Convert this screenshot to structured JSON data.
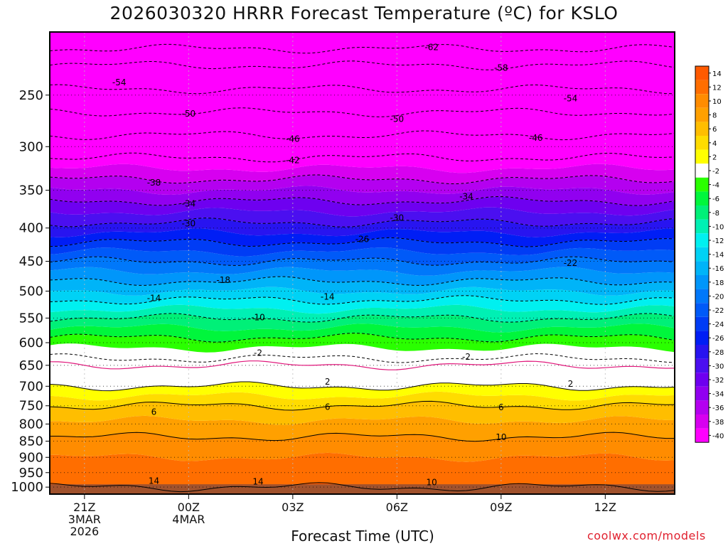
{
  "chart_data": {
    "type": "heatmap",
    "title": "2026030320 HRRR Forecast Temperature (ºC) for KSLO",
    "xlabel": "Forecast Time (UTC)",
    "credit": "coolwx.com/models",
    "x_range_hours": [
      -1,
      17
    ],
    "y_axis": {
      "type": "log",
      "range_hPa": [
        200,
        1025
      ]
    },
    "pressure_ticks": [
      {
        "value": 250,
        "label": "250"
      },
      {
        "value": 300,
        "label": "300"
      },
      {
        "value": 350,
        "label": "350"
      },
      {
        "value": 400,
        "label": "400"
      },
      {
        "value": 450,
        "label": "450"
      },
      {
        "value": 500,
        "label": "500"
      },
      {
        "value": 550,
        "label": "550"
      },
      {
        "value": 600,
        "label": "600"
      },
      {
        "value": 650,
        "label": "650"
      },
      {
        "value": 700,
        "label": "700"
      },
      {
        "value": 750,
        "label": "750"
      },
      {
        "value": 800,
        "label": "800"
      },
      {
        "value": 850,
        "label": "850"
      },
      {
        "value": 900,
        "label": "900"
      },
      {
        "value": 950,
        "label": "950"
      },
      {
        "value": 1000,
        "label": "1000"
      }
    ],
    "time_ticks": [
      {
        "hour": 0,
        "lines": [
          "21Z",
          "3MAR",
          "2026"
        ]
      },
      {
        "hour": 3,
        "lines": [
          "00Z",
          "4MAR"
        ]
      },
      {
        "hour": 6,
        "lines": [
          "03Z"
        ]
      },
      {
        "hour": 9,
        "lines": [
          "06Z"
        ]
      },
      {
        "hour": 12,
        "lines": [
          "09Z"
        ]
      },
      {
        "hour": 15,
        "lines": [
          "12Z"
        ]
      }
    ],
    "temperature_profile": [
      {
        "p": 200,
        "t": -66
      },
      {
        "p": 225,
        "t": -58
      },
      {
        "p": 250,
        "t": -53
      },
      {
        "p": 300,
        "t": -44
      },
      {
        "p": 350,
        "t": -36
      },
      {
        "p": 400,
        "t": -29
      },
      {
        "p": 450,
        "t": -22
      },
      {
        "p": 500,
        "t": -16
      },
      {
        "p": 550,
        "t": -10
      },
      {
        "p": 600,
        "t": -5
      },
      {
        "p": 640,
        "t": -1.5
      },
      {
        "p": 650,
        "t": 0
      },
      {
        "p": 700,
        "t": 2
      },
      {
        "p": 750,
        "t": 6
      },
      {
        "p": 800,
        "t": 8.5
      },
      {
        "p": 850,
        "t": 10.5
      },
      {
        "p": 900,
        "t": 12
      },
      {
        "p": 950,
        "t": 13.5
      },
      {
        "p": 1000,
        "t": 14
      }
    ],
    "ground_level_hPa": 990,
    "contour_labels": [
      {
        "text": "-62",
        "hour": 10.0,
        "p": 211
      },
      {
        "text": "-58",
        "hour": 12.0,
        "p": 227
      },
      {
        "text": "-54",
        "hour": 1.0,
        "p": 239
      },
      {
        "text": "-54",
        "hour": 14.0,
        "p": 253
      },
      {
        "text": "-50",
        "hour": 3.0,
        "p": 267
      },
      {
        "text": "-50",
        "hour": 9.0,
        "p": 272
      },
      {
        "text": "-46",
        "hour": 6.0,
        "p": 292
      },
      {
        "text": "-46",
        "hour": 13.0,
        "p": 291
      },
      {
        "text": "-42",
        "hour": 6.0,
        "p": 315
      },
      {
        "text": "-38",
        "hour": 2.0,
        "p": 341
      },
      {
        "text": "-34",
        "hour": 3.0,
        "p": 367
      },
      {
        "text": "-34",
        "hour": 11.0,
        "p": 358
      },
      {
        "text": "-30",
        "hour": 3.0,
        "p": 394
      },
      {
        "text": "-30",
        "hour": 9.0,
        "p": 386
      },
      {
        "text": "-26",
        "hour": 8.0,
        "p": 416
      },
      {
        "text": "-22",
        "hour": 14.0,
        "p": 453
      },
      {
        "text": "-18",
        "hour": 4.0,
        "p": 481
      },
      {
        "text": "-14",
        "hour": 2.0,
        "p": 513
      },
      {
        "text": "-14",
        "hour": 7.0,
        "p": 510
      },
      {
        "text": "-10",
        "hour": 5.0,
        "p": 549
      },
      {
        "text": "-2",
        "hour": 5.0,
        "p": 622
      },
      {
        "text": "-2",
        "hour": 11.0,
        "p": 631
      },
      {
        "text": "2",
        "hour": 7.0,
        "p": 689
      },
      {
        "text": "2",
        "hour": 14.0,
        "p": 694
      },
      {
        "text": "6",
        "hour": 2.0,
        "p": 767
      },
      {
        "text": "6",
        "hour": 7.0,
        "p": 753
      },
      {
        "text": "6",
        "hour": 12.0,
        "p": 754
      },
      {
        "text": "10",
        "hour": 12.0,
        "p": 838
      },
      {
        "text": "10",
        "hour": 10.0,
        "p": 983
      },
      {
        "text": "14",
        "hour": 2.0,
        "p": 978
      },
      {
        "text": "14",
        "hour": 5.0,
        "p": 981
      }
    ],
    "colorbar": [
      {
        "label": "14",
        "color": "#ff5a00"
      },
      {
        "label": "12",
        "color": "#ff6e00"
      },
      {
        "label": "10",
        "color": "#ff8c00"
      },
      {
        "label": "8",
        "color": "#ffa000"
      },
      {
        "label": "6",
        "color": "#ffbe00"
      },
      {
        "label": "4",
        "color": "#ffdc00"
      },
      {
        "label": "2",
        "color": "#ffff00"
      },
      {
        "label": "-2",
        "color": "#ffffff"
      },
      {
        "label": "-4",
        "color": "#2aff00"
      },
      {
        "label": "-6",
        "color": "#00f63c"
      },
      {
        "label": "-8",
        "color": "#00f078"
      },
      {
        "label": "-10",
        "color": "#00f0b4"
      },
      {
        "label": "-12",
        "color": "#00f0f0"
      },
      {
        "label": "-14",
        "color": "#00d2f5"
      },
      {
        "label": "-16",
        "color": "#00b4f8"
      },
      {
        "label": "-18",
        "color": "#0096fa"
      },
      {
        "label": "-20",
        "color": "#0078fa"
      },
      {
        "label": "-22",
        "color": "#005af8"
      },
      {
        "label": "-24",
        "color": "#003cf5"
      },
      {
        "label": "-26",
        "color": "#001ef5"
      },
      {
        "label": "-28",
        "color": "#2814f0"
      },
      {
        "label": "-30",
        "color": "#4b0ff0"
      },
      {
        "label": "-32",
        "color": "#6e00f0"
      },
      {
        "label": "-34",
        "color": "#9100f0"
      },
      {
        "label": "-36",
        "color": "#b400f0"
      },
      {
        "label": "-38",
        "color": "#d700f0"
      },
      {
        "label": "-40",
        "color": "#ff00ff"
      }
    ]
  }
}
